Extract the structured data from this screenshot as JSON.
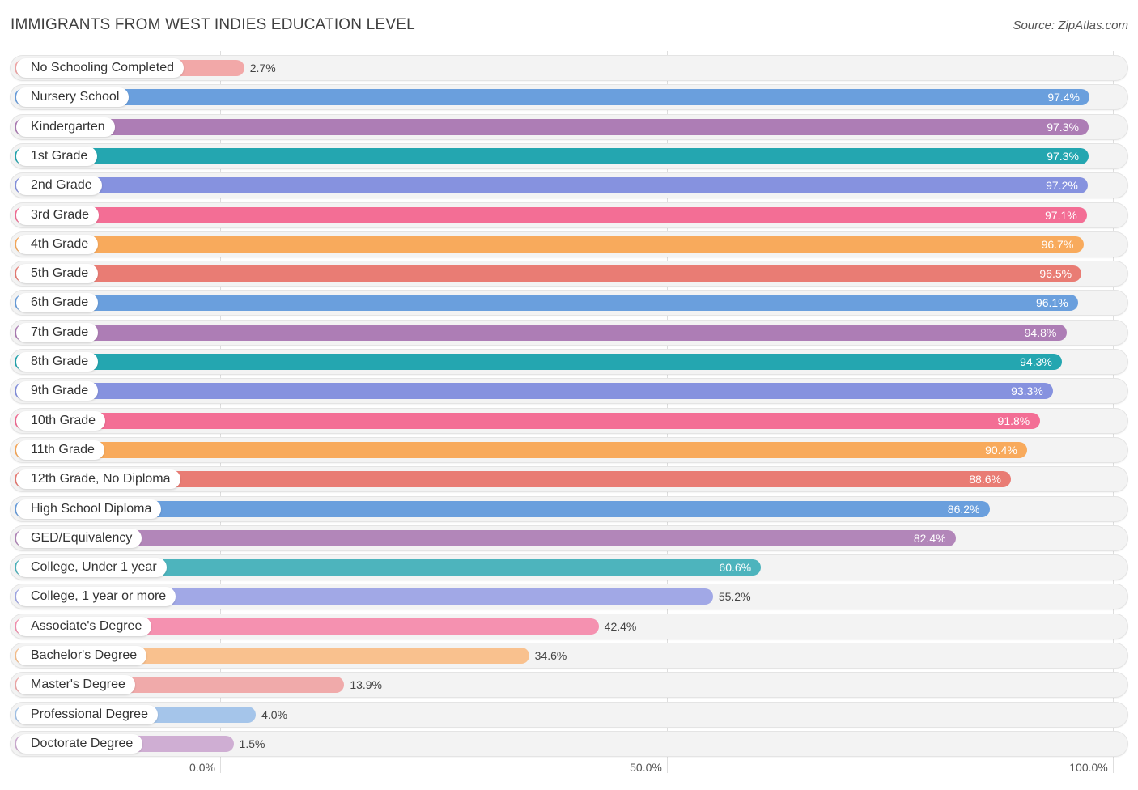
{
  "title": "IMMIGRANTS FROM WEST INDIES EDUCATION LEVEL",
  "source": "Source: ZipAtlas.com",
  "chart_data": {
    "type": "bar",
    "orientation": "horizontal",
    "xlim": [
      0,
      100
    ],
    "ticks": [
      {
        "value": 0,
        "label": "0.0%"
      },
      {
        "value": 50,
        "label": "50.0%"
      },
      {
        "value": 100,
        "label": "100.0%"
      }
    ],
    "categories": [
      {
        "name": "No Schooling Completed",
        "value": 2.7,
        "label": "2.7%",
        "color": "#f2a8a8"
      },
      {
        "name": "Nursery School",
        "value": 97.4,
        "label": "97.4%",
        "color": "#6a9fdd"
      },
      {
        "name": "Kindergarten",
        "value": 97.3,
        "label": "97.3%",
        "color": "#ad7db5"
      },
      {
        "name": "1st Grade",
        "value": 97.3,
        "label": "97.3%",
        "color": "#24a6b0"
      },
      {
        "name": "2nd Grade",
        "value": 97.2,
        "label": "97.2%",
        "color": "#8692df"
      },
      {
        "name": "3rd Grade",
        "value": 97.1,
        "label": "97.1%",
        "color": "#f36e95"
      },
      {
        "name": "4th Grade",
        "value": 96.7,
        "label": "96.7%",
        "color": "#f8aa5c"
      },
      {
        "name": "5th Grade",
        "value": 96.5,
        "label": "96.5%",
        "color": "#e97c74"
      },
      {
        "name": "6th Grade",
        "value": 96.1,
        "label": "96.1%",
        "color": "#6a9fdd"
      },
      {
        "name": "7th Grade",
        "value": 94.8,
        "label": "94.8%",
        "color": "#ad7db5"
      },
      {
        "name": "8th Grade",
        "value": 94.3,
        "label": "94.3%",
        "color": "#24a6b0"
      },
      {
        "name": "9th Grade",
        "value": 93.3,
        "label": "93.3%",
        "color": "#8692df"
      },
      {
        "name": "10th Grade",
        "value": 91.8,
        "label": "91.8%",
        "color": "#f36e95"
      },
      {
        "name": "11th Grade",
        "value": 90.4,
        "label": "90.4%",
        "color": "#f8aa5c"
      },
      {
        "name": "12th Grade, No Diploma",
        "value": 88.6,
        "label": "88.6%",
        "color": "#e97c74"
      },
      {
        "name": "High School Diploma",
        "value": 86.2,
        "label": "86.2%",
        "color": "#6a9fdd"
      },
      {
        "name": "GED/Equivalency",
        "value": 82.4,
        "label": "82.4%",
        "color": "#b286b9"
      },
      {
        "name": "College, Under 1 year",
        "value": 60.6,
        "label": "60.6%",
        "color": "#4db4bd"
      },
      {
        "name": "College, 1 year or more",
        "value": 55.2,
        "label": "55.2%",
        "color": "#a1a8e6"
      },
      {
        "name": "Associate's Degree",
        "value": 42.4,
        "label": "42.4%",
        "color": "#f591b0"
      },
      {
        "name": "Bachelor's Degree",
        "value": 34.6,
        "label": "34.6%",
        "color": "#f9c18e"
      },
      {
        "name": "Master's Degree",
        "value": 13.9,
        "label": "13.9%",
        "color": "#f0aaaa"
      },
      {
        "name": "Professional Degree",
        "value": 4.0,
        "label": "4.0%",
        "color": "#a5c5ea"
      },
      {
        "name": "Doctorate Degree",
        "value": 1.5,
        "label": "1.5%",
        "color": "#cfaed3"
      }
    ]
  }
}
